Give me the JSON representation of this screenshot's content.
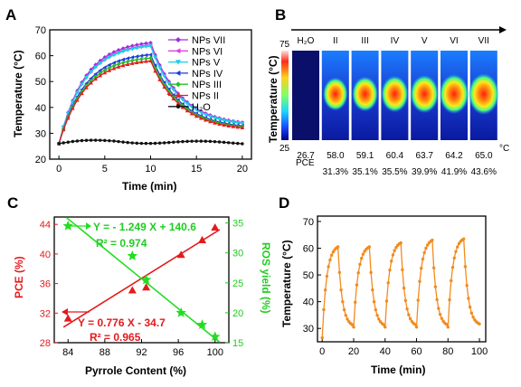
{
  "panels": {
    "a": "A",
    "b": "B",
    "c": "C",
    "d": "D"
  },
  "chart_data": [
    {
      "type": "line",
      "xlabel": "Time (min)",
      "ylabel": "Temperature (°C)",
      "xlim": [
        -1,
        21
      ],
      "ylim": [
        20,
        70
      ],
      "xticks": [
        0,
        5,
        10,
        15,
        20
      ],
      "yticks": [
        20,
        30,
        40,
        50,
        60,
        70
      ],
      "legend_position": "top-right",
      "series": [
        {
          "name": "NPs VII",
          "color": "#9b30d9",
          "marker": "diamond",
          "peak": 65.0
        },
        {
          "name": "NPs VI",
          "color": "#e23fe6",
          "marker": "triangle-left",
          "peak": 64.2
        },
        {
          "name": "NPs V",
          "color": "#17d0e8",
          "marker": "triangle-down",
          "peak": 63.7
        },
        {
          "name": "NPs IV",
          "color": "#1f3fd6",
          "marker": "triangle-left",
          "peak": 60.4
        },
        {
          "name": "NPs III",
          "color": "#27c02a",
          "marker": "diamond",
          "peak": 59.1
        },
        {
          "name": "NPs II",
          "color": "#e02020",
          "marker": "triangle-up",
          "peak": 58.0
        },
        {
          "name": "H₂O",
          "color": "#111111",
          "marker": "circle",
          "peak": 26.7
        }
      ]
    },
    {
      "type": "heatmap",
      "colorbar_unit": "Temperature (°C)",
      "colorbar_max": "75",
      "colorbar_min": "25",
      "samples": [
        "H₂O",
        "II",
        "III",
        "IV",
        "V",
        "VI",
        "VII"
      ],
      "temperatures": [
        "26.7",
        "58.0",
        "59.1",
        "60.4",
        "63.7",
        "64.2",
        "65.0"
      ],
      "temp_unit": "°C",
      "pce_label": "PCE",
      "pce": [
        "31.3%",
        "35.1%",
        "35.5%",
        "39.9%",
        "41.9%",
        "43.6%"
      ]
    },
    {
      "type": "scatter",
      "xlabel": "Pyrrole Content (%)",
      "ylabel_left": "PCE (%)",
      "ylabel_right": "ROS yield (%)",
      "xlim": [
        82.5,
        101.5
      ],
      "ylim_left": [
        28,
        45
      ],
      "ylim_right": [
        15,
        36
      ],
      "xticks": [
        84,
        88,
        92,
        96,
        100
      ],
      "yticks_left": [
        28,
        32,
        36,
        40,
        44
      ],
      "yticks_right": [
        15,
        20,
        25,
        30,
        35
      ],
      "pce_series": {
        "color": "#e41a1c",
        "x": [
          84,
          91,
          92.5,
          96.3,
          98.6,
          100
        ],
        "y": [
          31.3,
          35.1,
          35.5,
          39.9,
          41.9,
          43.6
        ]
      },
      "ros_series": {
        "color": "#22dd22",
        "x": [
          84,
          91,
          92.5,
          96.3,
          98.6,
          100
        ],
        "y": [
          34.5,
          29.5,
          25.5,
          20,
          18,
          16
        ]
      },
      "ros_fit": {
        "equation": "Y = - 1.249 X + 140.6",
        "r2": "R² = 0.974"
      },
      "pce_fit": {
        "equation": "Y = 0.776 X - 34.7",
        "r2": "R² = 0.965"
      }
    },
    {
      "type": "line",
      "xlabel": "Time (min)",
      "ylabel": "Temperature (°C)",
      "xlim": [
        -3,
        104
      ],
      "ylim": [
        25,
        72
      ],
      "xticks": [
        0,
        20,
        40,
        60,
        80,
        100
      ],
      "yticks": [
        30,
        40,
        50,
        60,
        70
      ],
      "color": "#f28b1e",
      "cycles": [
        {
          "start": 0,
          "peak": 60.5,
          "trough": 30.5,
          "base": 26.5
        },
        {
          "start": 20,
          "peak": 60.5,
          "trough": 30.5
        },
        {
          "start": 40,
          "peak": 62.0,
          "trough": 30.5
        },
        {
          "start": 60,
          "peak": 63.0,
          "trough": 30.5
        },
        {
          "start": 80,
          "peak": 63.5,
          "trough": 31.0
        }
      ]
    }
  ]
}
